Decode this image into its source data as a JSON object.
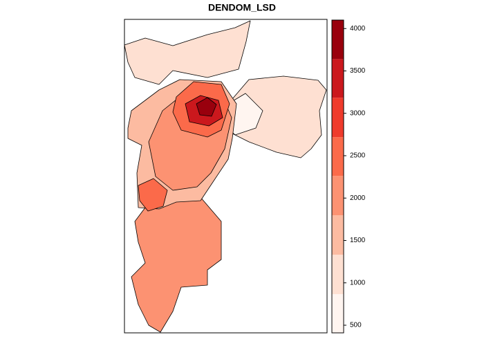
{
  "map": {
    "title": "DENDOM_LSD",
    "legend": {
      "breaks": [
        410,
        867,
        1332,
        1797,
        2262,
        2719,
        3184,
        3640,
        4100
      ],
      "colors": [
        "#fff5f0",
        "#fee0d2",
        "#fcbba1",
        "#fc9272",
        "#fb6a4a",
        "#ef3b2c",
        "#cb181d",
        "#99000d"
      ],
      "ticks": [
        500,
        1000,
        1500,
        2000,
        2500,
        3000,
        3500,
        4000
      ]
    }
  }
}
